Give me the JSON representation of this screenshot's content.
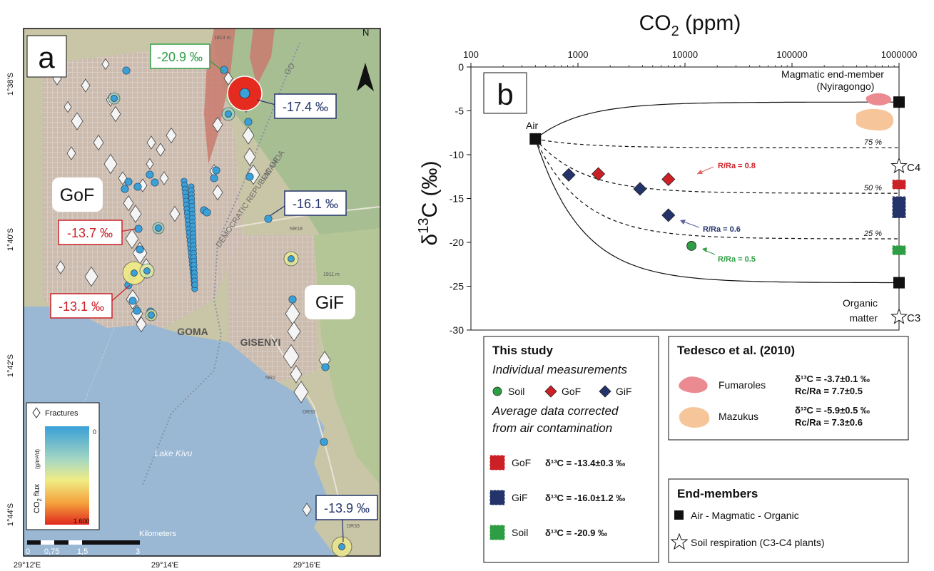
{
  "colors": {
    "soil": "#2e9e44",
    "gof": "#cc2027",
    "gif": "#24346a",
    "fumaroles": "#ec8a92",
    "mazukus": "#f7c59a",
    "point": "#3aa0d8",
    "water": "#9ab8d4"
  },
  "map": {
    "panel_label": "a",
    "north": "N",
    "place_labels": {
      "gof": "GoF",
      "gif": "GiF",
      "goma": "GOMA",
      "gisenyi": "GISENYI",
      "lake": "Lake Kivu",
      "drc": "DEMOCRATIC REPUBLIC OF",
      "go": "GO",
      "rwanda": "RWANDA",
      "nr18": "NR18",
      "nr2": "NR2",
      "dr33": "DR33",
      "dr33b": "DR33",
      "elev1": "1813 m",
      "elev2": "1911 m"
    },
    "callouts": [
      {
        "text": "-20.9 ‰",
        "color": "#2e9e44"
      },
      {
        "text": "-17.4 ‰",
        "color": "#24346a"
      },
      {
        "text": "-16.1 ‰",
        "color": "#24346a"
      },
      {
        "text": "-13.7 ‰",
        "color": "#cc2027"
      },
      {
        "text": "-13.1 ‰",
        "color": "#cc2027"
      },
      {
        "text": "-13.9 ‰",
        "color": "#24346a"
      }
    ],
    "lat_labels": [
      "1°38'S",
      "1°40'S",
      "1°42'S",
      "1°44'S"
    ],
    "lon_labels": [
      "29°12'E",
      "29°14'E",
      "29°16'E"
    ],
    "legend": {
      "fractures": "Fractures",
      "flux_label": "CO",
      "flux_sub": "2",
      "flux_rest": " flux",
      "flux_unit": "(g/m²/d)",
      "max": "0",
      "min": "1 600"
    },
    "scale": {
      "label": "Kilometers",
      "ticks": [
        "0",
        "0,75",
        "1,5",
        "3"
      ]
    }
  },
  "chart_data": {
    "type": "scatter",
    "panel_label": "b",
    "title": "CO",
    "title_sub": "2",
    "title_rest": " (ppm)",
    "xlabel": "CO2 (ppm)",
    "ylabel": "δ13C (‰)",
    "xscale": "log",
    "xlim": [
      100,
      1000000
    ],
    "ylim": [
      -30,
      0
    ],
    "x_ticks": [
      "100",
      "1000",
      "10000",
      "100000",
      "1000000"
    ],
    "y_ticks": [
      "0",
      "-5",
      "-10",
      "-15",
      "-20",
      "-25",
      "-30"
    ],
    "series": [
      {
        "name": "Soil",
        "marker": "circle",
        "color": "#2e9e44",
        "points": [
          [
            11500,
            -20.4
          ]
        ]
      },
      {
        "name": "GoF",
        "marker": "diamond",
        "color": "#cc2027",
        "points": [
          [
            1550,
            -12.2
          ],
          [
            7000,
            -12.8
          ]
        ]
      },
      {
        "name": "GiF",
        "marker": "diamond",
        "color": "#24346a",
        "points": [
          [
            820,
            -12.3
          ],
          [
            3800,
            -13.9
          ],
          [
            7000,
            -16.9
          ]
        ]
      }
    ],
    "end_members": [
      {
        "x": 400,
        "y": -8.2
      },
      {
        "x": 1000000,
        "y": -4.0
      },
      {
        "x": 1000000,
        "y": -24.6
      }
    ],
    "stars": [
      {
        "x": 1000000,
        "y": -11.3
      },
      {
        "x": 1000000,
        "y": -28.5
      }
    ],
    "averages": [
      {
        "name": "GoF",
        "y": -13.4,
        "err": 0.3,
        "color": "#cc2027"
      },
      {
        "name": "GiF",
        "y": -16.0,
        "err": 1.2,
        "color": "#24346a"
      },
      {
        "name": "Soil",
        "y": -20.9,
        "err": 0.1,
        "color": "#2e9e44"
      }
    ],
    "mixing_labels": [
      "75 %",
      "50 %",
      "25 %"
    ],
    "annotations": {
      "magmatic": "Magmatic end-member",
      "nyiragongo": "(Nyiragongo)",
      "air": "Air",
      "organic": "Organic",
      "matter": "matter",
      "c4": "C4",
      "c3": "C3",
      "ra08": "R/Ra = 0.8",
      "ra06": "R/Ra = 0.6",
      "ra05": "R/Ra = 0.5"
    },
    "legend_study": {
      "title": "This study",
      "subtitle": "Individual measurements",
      "soil": "Soil",
      "gof": "GoF",
      "gif": "GiF",
      "avg_title1": "Average data corrected",
      "avg_title2": "from air contamination",
      "gof_val": "δ¹³C = -13.4±0.3 ‰",
      "gif_val": "δ¹³C = -16.0±1.2 ‰",
      "soil_val": "δ¹³C = -20.9 ‰"
    },
    "legend_tedesco": {
      "title": "Tedesco et al. (2010)",
      "fumaroles": "Fumaroles",
      "fum_c": "δ¹³C = -3.7±0.1 ‰",
      "fum_r": "Rc/Ra = 7.7±0.5",
      "mazukus": "Mazukus",
      "maz_c": "δ¹³C = -5.9±0.5 ‰",
      "maz_r": "Rc/Ra = 7.3±0.6"
    },
    "legend_end": {
      "title": "End-members",
      "square": "Air - Magmatic - Organic",
      "star": "Soil respiration (C3-C4 plants)"
    }
  }
}
